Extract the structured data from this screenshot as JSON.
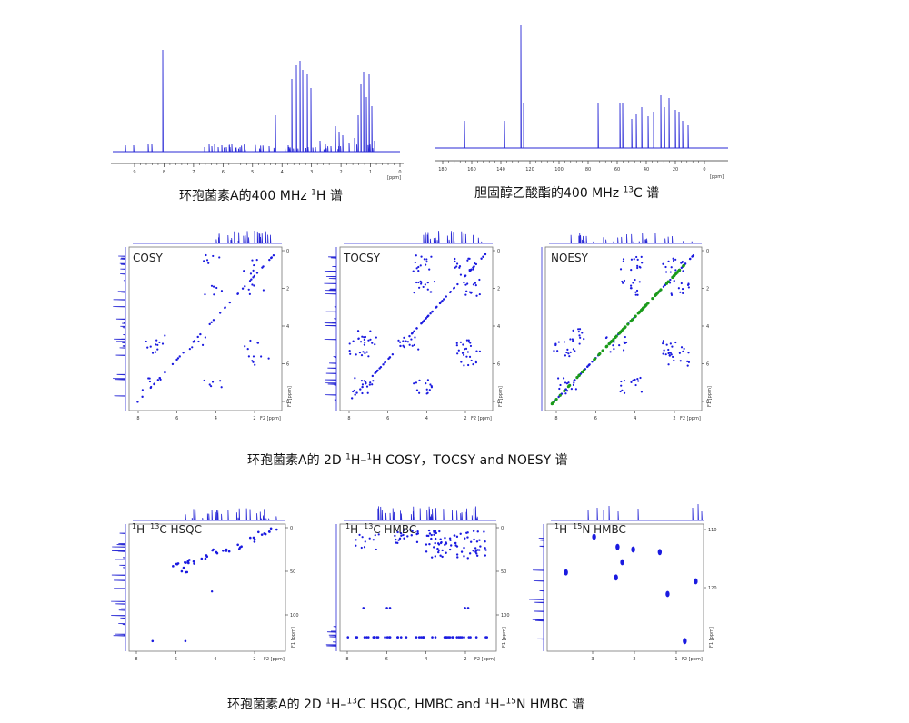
{
  "captions": {
    "h1": {
      "pre": "环孢菌素A的400 MHz ",
      "sup1": "1",
      "post": "H 谱"
    },
    "c13": {
      "pre": "胆固醇乙酸酯的400 MHz ",
      "sup1": "13",
      "post": "C 谱"
    },
    "homo2d": {
      "pre": "环孢菌素A的 2D ",
      "sup1": "1",
      "mid": "H–",
      "sup2": "1",
      "post": "H COSY，TOCSY and NOESY 谱"
    },
    "hetero2d": {
      "pre": "环孢菌素A的 2D ",
      "sup1": "1",
      "mid1": "H–",
      "sup2": "13",
      "mid2": "C HSQC, HMBC and  ",
      "sup3": "1",
      "mid3": "H–",
      "sup4": "15",
      "post": "N HMBC 谱"
    }
  },
  "spectrum_h1": {
    "x_ticks": [
      "9",
      "8",
      "7",
      "6",
      "5",
      "4",
      "3",
      "2",
      "1",
      "0"
    ],
    "axis_unit": "[ppm]"
  },
  "spectrum_c13": {
    "x_ticks": [
      "180",
      "160",
      "140",
      "120",
      "100",
      "80",
      "60",
      "40",
      "20",
      "0"
    ],
    "axis_unit": "[ppm]"
  },
  "panels": {
    "cosy": {
      "title": "COSY",
      "x_ticks": [
        "8",
        "6",
        "4",
        "2"
      ],
      "y_ticks": [
        "0",
        "2",
        "4",
        "6",
        "8"
      ],
      "f1": "F1 [ppm]",
      "f2": "F2 [ppm]"
    },
    "tocsy": {
      "title": "TOCSY",
      "x_ticks": [
        "8",
        "6",
        "4",
        "2"
      ],
      "y_ticks": [
        "0",
        "2",
        "4",
        "6",
        "8"
      ],
      "f1": "F1 [ppm]",
      "f2": "F2 [ppm]"
    },
    "noesy": {
      "title": "NOESY",
      "x_ticks": [
        "8",
        "6",
        "4",
        "2"
      ],
      "y_ticks": [
        "0",
        "2",
        "4",
        "6",
        "8"
      ],
      "f1": "F1 [ppm]",
      "f2": "F2 [ppm]"
    },
    "hsqc": {
      "t1": "1",
      "t2": "H–",
      "t3": "13",
      "t4": "C HSQC",
      "x_ticks": [
        "8",
        "6",
        "4",
        "2"
      ],
      "y_ticks": [
        "0",
        "50",
        "100"
      ],
      "f1": "F1 [ppm]",
      "f2": "F2 [ppm]"
    },
    "hmbc": {
      "t1": "1",
      "t2": "H–",
      "t3": "13",
      "t4": "C HMBC",
      "x_ticks": [
        "8",
        "6",
        "4",
        "2"
      ],
      "y_ticks": [
        "0",
        "50",
        "100"
      ],
      "f1": "F1 [ppm]",
      "f2": "F2 [ppm]"
    },
    "nhmbc": {
      "t1": "1",
      "t2": "H–",
      "t3": "15",
      "t4": "N HMBC",
      "x_ticks": [
        "3",
        "2",
        "1"
      ],
      "y_ticks": [
        "110",
        "120"
      ],
      "f1": "F1 [ppm]",
      "f2": "F2 [ppm]"
    }
  },
  "colors": {
    "spectrum": "#2a2ad6",
    "cross_peak": "#1a1ae0",
    "noesy_diag": "#1a9a1a",
    "frame": "#777777"
  }
}
